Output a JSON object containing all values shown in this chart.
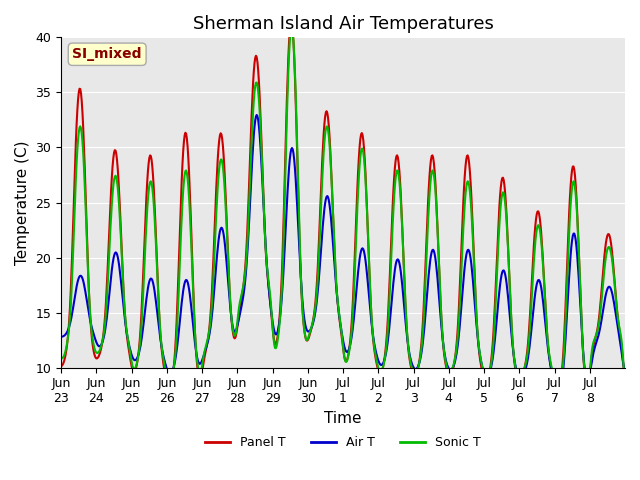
{
  "title": "Sherman Island Air Temperatures",
  "xlabel": "Time",
  "ylabel": "Temperature (C)",
  "ylim": [
    10,
    40
  ],
  "background_color": "#ffffff",
  "plot_bg_color": "#e8e8e8",
  "grid_color": "#ffffff",
  "line_colors": {
    "panel": "#cc0000",
    "air": "#0000cc",
    "sonic": "#00bb00"
  },
  "line_width": 1.5,
  "annotation_text": "SI_mixed",
  "annotation_color": "#880000",
  "annotation_bg": "#ffffcc",
  "tick_labels": [
    "Jun\n23",
    "Jun\n24",
    "Jun\n25",
    "Jun\n26",
    "Jun\n27",
    "Jun\n28",
    "Jun\n29",
    "Jun\n30",
    "Jul\n1",
    "Jul\n2",
    "Jul\n3",
    "Jul\n4",
    "Jul\n5",
    "Jul\n6",
    "Jul\n7",
    "Jul\n8"
  ],
  "legend_labels": [
    "Panel T",
    "Air T",
    "Sonic T"
  ],
  "title_fontsize": 13,
  "axis_fontsize": 11,
  "tick_fontsize": 9
}
